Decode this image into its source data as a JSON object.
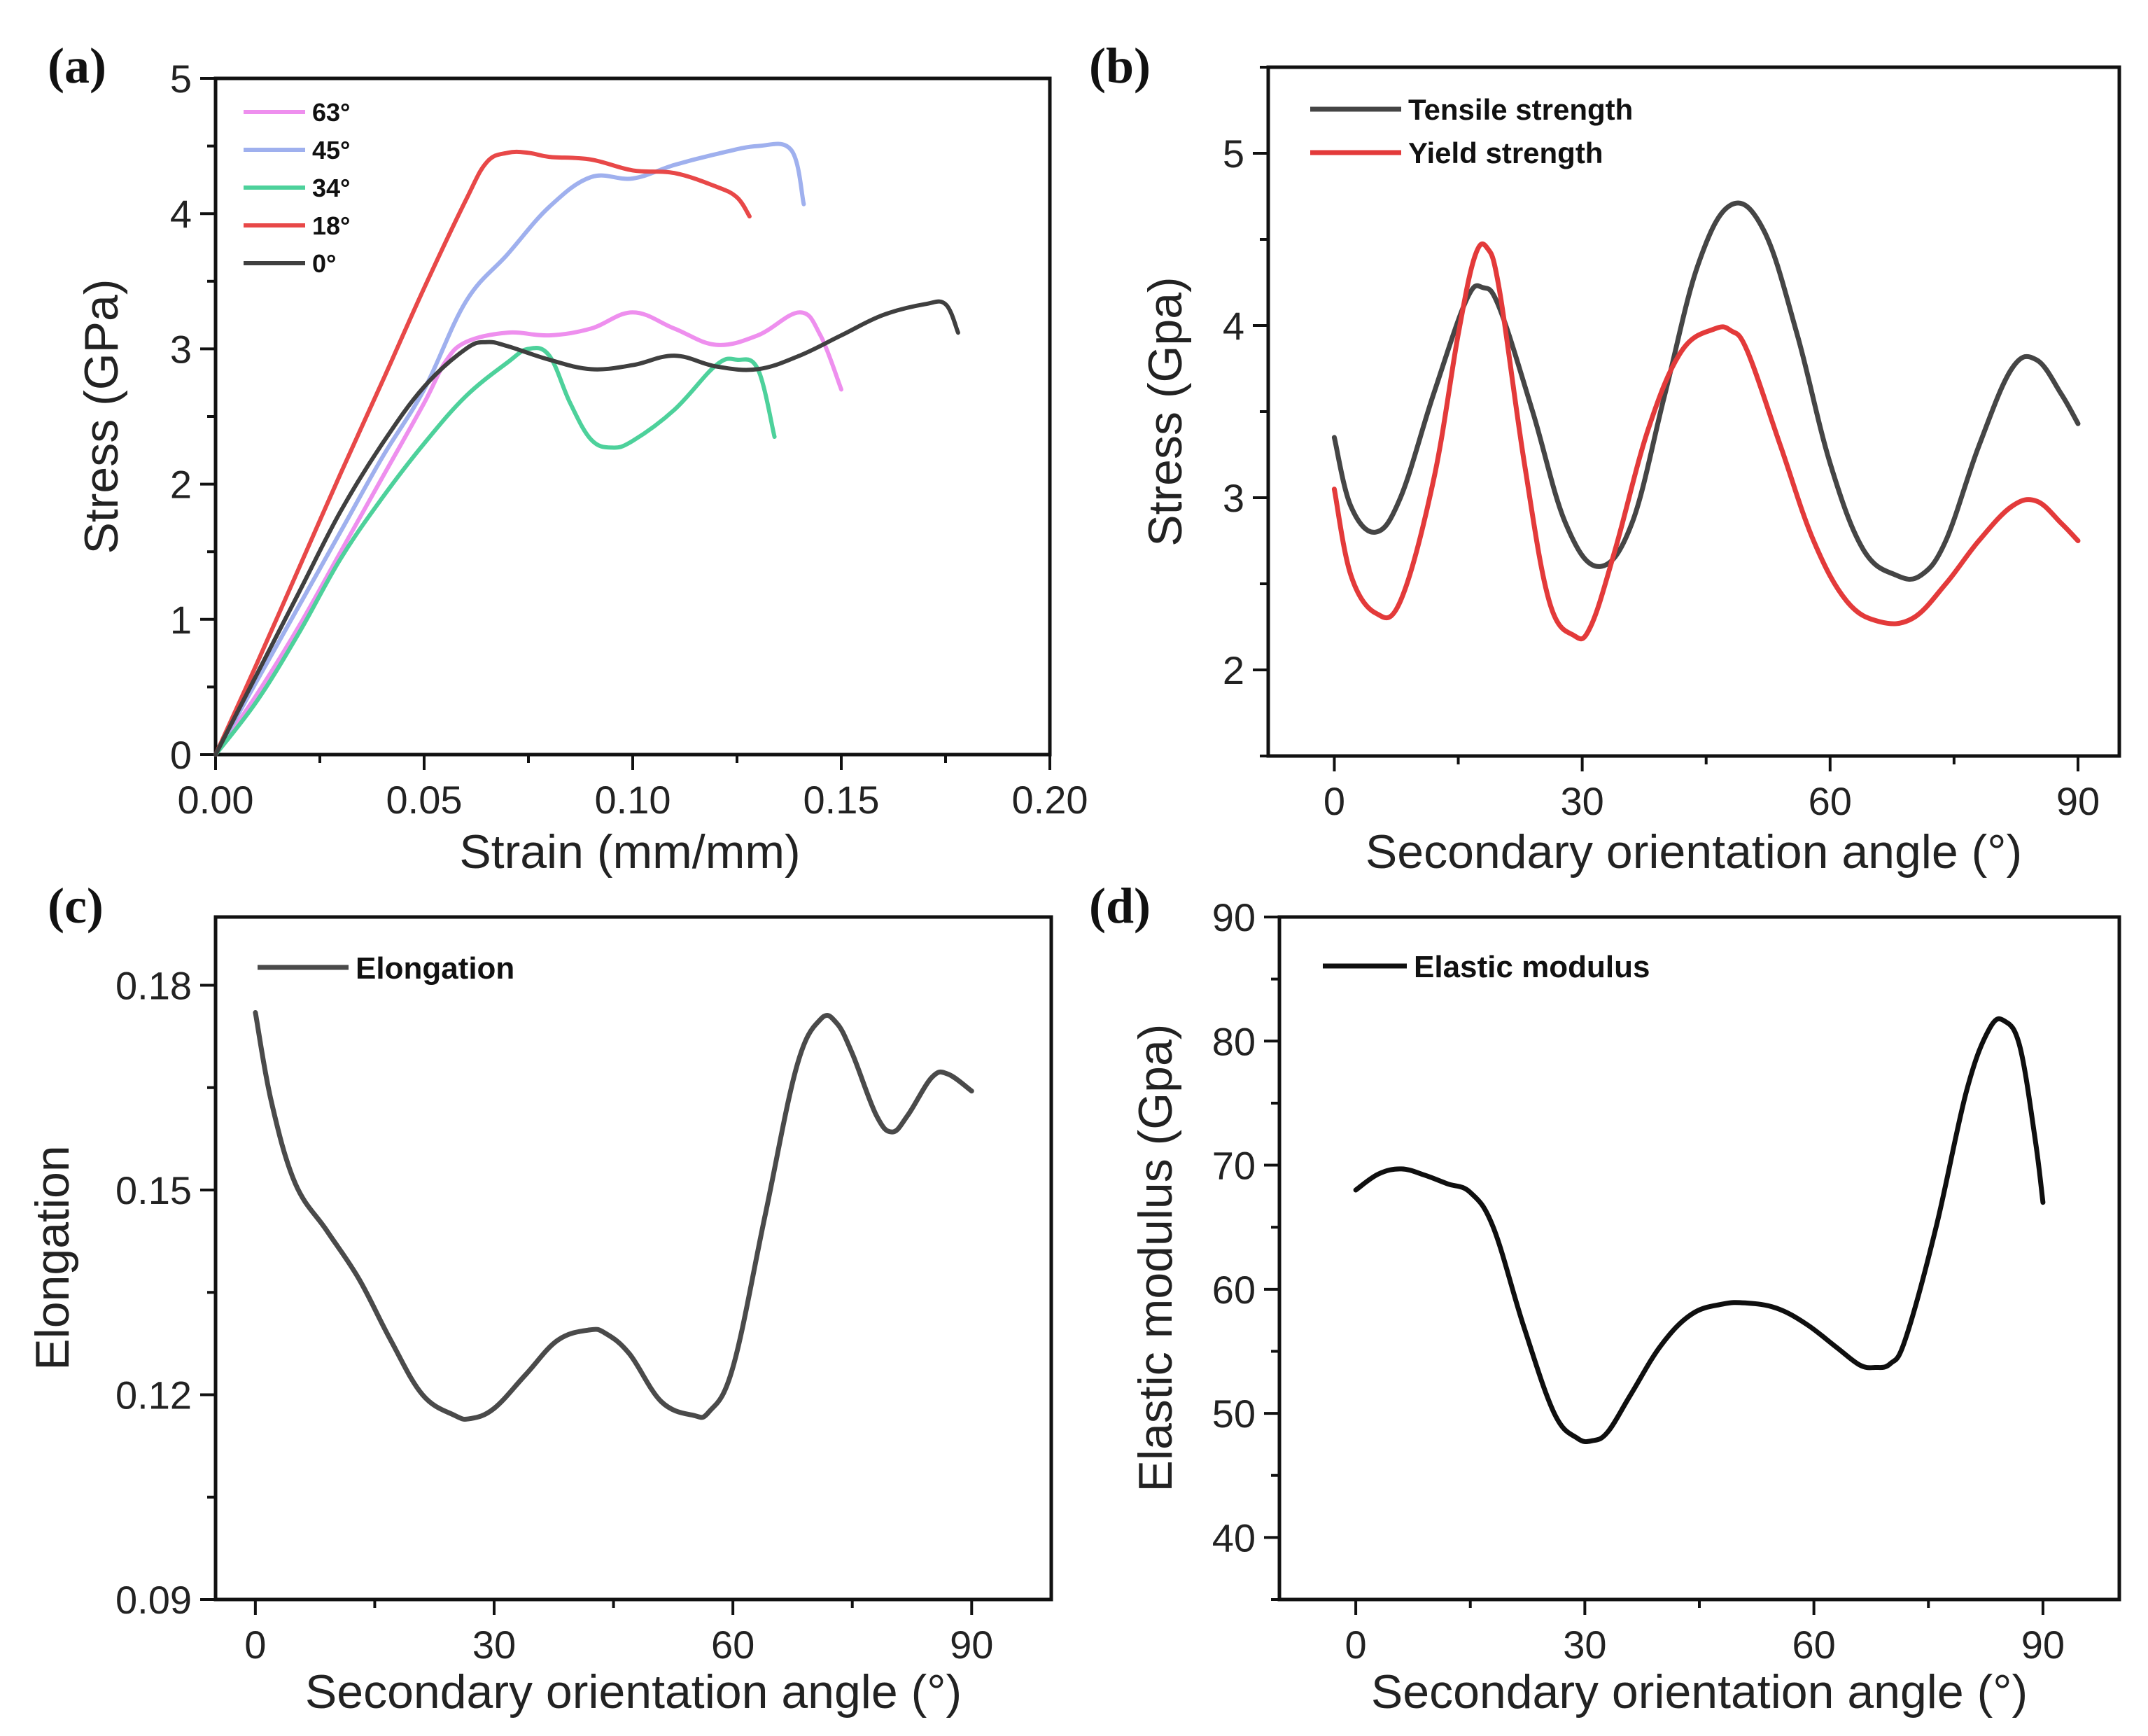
{
  "chart_data": [
    {
      "id": "a",
      "type": "line",
      "panel_label": "(a)",
      "xlabel": "Strain (mm/mm)",
      "ylabel": "Stress (GPa)",
      "xlim": [
        0,
        0.2
      ],
      "ylim": [
        0,
        5
      ],
      "xticks": [
        0,
        0.05,
        0.1,
        0.15,
        0.2
      ],
      "xtick_labels": [
        "0.00",
        "0.05",
        "0.10",
        "0.15",
        "0.20"
      ],
      "yticks": [
        0,
        1,
        2,
        3,
        4,
        5
      ],
      "ytick_labels": [
        "0",
        "1",
        "2",
        "3",
        "4",
        "5"
      ],
      "legend_position": "top-left",
      "series": [
        {
          "name": "63°",
          "color": "#ee8fee",
          "x": [
            0,
            0.01,
            0.02,
            0.03,
            0.04,
            0.05,
            0.055,
            0.06,
            0.07,
            0.08,
            0.09,
            0.1,
            0.11,
            0.12,
            0.13,
            0.14,
            0.145,
            0.15
          ],
          "y": [
            0,
            0.45,
            0.95,
            1.5,
            2.05,
            2.6,
            2.9,
            3.05,
            3.12,
            3.1,
            3.15,
            3.27,
            3.15,
            3.03,
            3.1,
            3.27,
            3.1,
            2.7
          ]
        },
        {
          "name": "45°",
          "color": "#9fb0ee",
          "x": [
            0,
            0.01,
            0.02,
            0.03,
            0.04,
            0.05,
            0.06,
            0.07,
            0.08,
            0.09,
            0.1,
            0.11,
            0.12,
            0.13,
            0.138,
            0.141
          ],
          "y": [
            0,
            0.55,
            1.1,
            1.65,
            2.2,
            2.7,
            3.35,
            3.7,
            4.05,
            4.27,
            4.26,
            4.36,
            4.44,
            4.5,
            4.47,
            4.07
          ]
        },
        {
          "name": "34°",
          "color": "#4dd19b",
          "x": [
            0,
            0.01,
            0.02,
            0.03,
            0.04,
            0.05,
            0.06,
            0.07,
            0.075,
            0.08,
            0.085,
            0.09,
            0.095,
            0.1,
            0.11,
            0.12,
            0.125,
            0.13,
            0.134
          ],
          "y": [
            0,
            0.4,
            0.9,
            1.45,
            1.9,
            2.3,
            2.65,
            2.9,
            3.0,
            2.95,
            2.6,
            2.33,
            2.27,
            2.32,
            2.55,
            2.88,
            2.92,
            2.85,
            2.35
          ]
        },
        {
          "name": "18°",
          "color": "#e84848",
          "x": [
            0,
            0.01,
            0.02,
            0.03,
            0.04,
            0.05,
            0.06,
            0.065,
            0.07,
            0.075,
            0.08,
            0.09,
            0.1,
            0.11,
            0.12,
            0.125,
            0.128
          ],
          "y": [
            0,
            0.68,
            1.38,
            2.08,
            2.76,
            3.45,
            4.1,
            4.38,
            4.45,
            4.45,
            4.42,
            4.4,
            4.32,
            4.3,
            4.2,
            4.12,
            3.98
          ]
        },
        {
          "name": "0°",
          "color": "#3f3f3f",
          "x": [
            0,
            0.01,
            0.02,
            0.03,
            0.04,
            0.05,
            0.06,
            0.065,
            0.07,
            0.08,
            0.09,
            0.1,
            0.11,
            0.12,
            0.13,
            0.14,
            0.15,
            0.16,
            0.17,
            0.175,
            0.178
          ],
          "y": [
            0,
            0.6,
            1.2,
            1.8,
            2.3,
            2.72,
            3.0,
            3.05,
            3.02,
            2.92,
            2.85,
            2.88,
            2.95,
            2.87,
            2.85,
            2.95,
            3.1,
            3.25,
            3.33,
            3.33,
            3.12
          ]
        }
      ]
    },
    {
      "id": "b",
      "type": "line",
      "panel_label": "(b)",
      "xlabel": "Secondary orientation angle (°)",
      "ylabel": "Stress (Gpa)",
      "xlim": [
        -8,
        95
      ],
      "ylim": [
        1.5,
        5.5
      ],
      "xticks": [
        0,
        30,
        60,
        90
      ],
      "xtick_labels": [
        "0",
        "30",
        "60",
        "90"
      ],
      "yticks": [
        2,
        3,
        4,
        5
      ],
      "ytick_labels": [
        "2",
        "3",
        "4",
        "5"
      ],
      "legend_position": "top-left",
      "series": [
        {
          "name": "Tensile strength",
          "color": "#454545",
          "x": [
            0,
            2,
            5,
            8,
            12,
            16,
            18,
            20,
            24,
            28,
            32,
            36,
            40,
            44,
            48,
            52,
            56,
            60,
            64,
            68,
            71,
            74,
            78,
            82,
            85,
            88,
            90
          ],
          "y": [
            3.35,
            2.95,
            2.8,
            3.0,
            3.6,
            4.15,
            4.22,
            4.1,
            3.5,
            2.85,
            2.6,
            2.85,
            3.6,
            4.35,
            4.7,
            4.55,
            3.95,
            3.2,
            2.7,
            2.55,
            2.55,
            2.75,
            3.3,
            3.75,
            3.8,
            3.6,
            3.43
          ]
        },
        {
          "name": "Yield strength",
          "color": "#e33a3a",
          "x": [
            0,
            2,
            5,
            8,
            12,
            15,
            17,
            18.5,
            20,
            23,
            26,
            29,
            31,
            34,
            38,
            42,
            46,
            48,
            50,
            54,
            58,
            62,
            66,
            70,
            74,
            78,
            82,
            85,
            88,
            90
          ],
          "y": [
            3.05,
            2.55,
            2.33,
            2.4,
            3.1,
            3.95,
            4.4,
            4.45,
            4.2,
            3.2,
            2.4,
            2.2,
            2.25,
            2.7,
            3.4,
            3.85,
            3.98,
            3.97,
            3.85,
            3.3,
            2.75,
            2.4,
            2.28,
            2.3,
            2.5,
            2.75,
            2.95,
            2.98,
            2.85,
            2.75
          ]
        }
      ]
    },
    {
      "id": "c",
      "type": "line",
      "panel_label": "(c)",
      "xlabel": "Secondary orientation angle (°)",
      "ylabel": "Elongation",
      "xlim": [
        -5,
        100
      ],
      "ylim": [
        0.09,
        0.19
      ],
      "xticks": [
        0,
        30,
        60,
        90
      ],
      "xtick_labels": [
        "0",
        "30",
        "60",
        "90"
      ],
      "yticks": [
        0.09,
        0.12,
        0.15,
        0.18
      ],
      "ytick_labels": [
        "0.09",
        "0.12",
        "0.15",
        "0.18"
      ],
      "legend_position": "top-left",
      "series": [
        {
          "name": "Elongation",
          "color": "#4a4a4a",
          "x": [
            0,
            2,
            5,
            9,
            13,
            17,
            21,
            25,
            27,
            30,
            34,
            38,
            42,
            44,
            47,
            51,
            55,
            57,
            60,
            64,
            68,
            71,
            73,
            75,
            78,
            80,
            82,
            85,
            87,
            90
          ],
          "y": [
            0.176,
            0.163,
            0.151,
            0.144,
            0.137,
            0.128,
            0.12,
            0.117,
            0.1165,
            0.118,
            0.123,
            0.128,
            0.1295,
            0.129,
            0.126,
            0.119,
            0.117,
            0.1175,
            0.124,
            0.146,
            0.168,
            0.175,
            0.1745,
            0.17,
            0.161,
            0.1585,
            0.161,
            0.1665,
            0.167,
            0.1645
          ]
        }
      ]
    },
    {
      "id": "d",
      "type": "line",
      "panel_label": "(d)",
      "xlabel": "Secondary orientation angle (°)",
      "ylabel": "Elastic modulus (Gpa)",
      "xlim": [
        -10,
        100
      ],
      "ylim": [
        35,
        90
      ],
      "xticks": [
        0,
        30,
        60,
        90
      ],
      "xtick_labels": [
        "0",
        "30",
        "60",
        "90"
      ],
      "yticks": [
        40,
        50,
        60,
        70,
        80,
        90
      ],
      "ytick_labels": [
        "40",
        "50",
        "60",
        "70",
        "80",
        "90"
      ],
      "legend_position": "top-left",
      "series": [
        {
          "name": "Elastic modulus",
          "color": "#0f0f0f",
          "x": [
            0,
            3,
            6,
            9,
            12,
            15,
            18,
            22,
            26,
            29,
            31,
            33,
            36,
            40,
            44,
            48,
            51,
            55,
            59,
            63,
            66,
            68,
            70,
            72,
            76,
            80,
            83,
            85,
            87,
            89,
            90
          ],
          "y": [
            68,
            69.3,
            69.7,
            69.2,
            68.5,
            67.8,
            65,
            57,
            50,
            48,
            47.8,
            48.5,
            51.5,
            55.5,
            58,
            58.8,
            58.9,
            58.5,
            57.2,
            55.3,
            53.9,
            53.7,
            54,
            56,
            65,
            76,
            81,
            81.6,
            79.5,
            72,
            67
          ]
        }
      ]
    }
  ]
}
